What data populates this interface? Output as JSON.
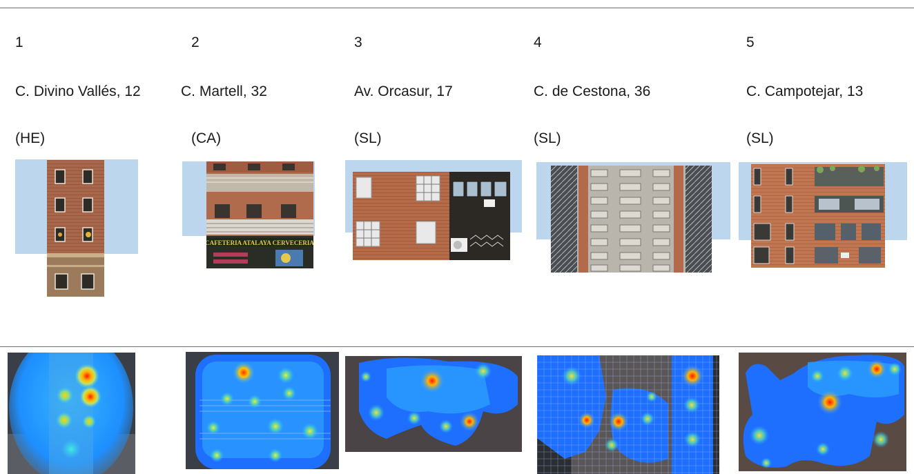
{
  "columns": [
    {
      "number": "1",
      "address": "C. Divino Vallés, 12",
      "code": "(HE)"
    },
    {
      "number": "2",
      "address": "C. Martell, 32",
      "code": "(CA)"
    },
    {
      "number": "3",
      "address": "Av. Orcasur, 17",
      "code": "(SL)"
    },
    {
      "number": "4",
      "address": "C. de Cestona, 36",
      "code": "(SL)"
    },
    {
      "number": "5",
      "address": "C. Campotejar, 13",
      "code": "(SL)"
    }
  ],
  "signs": {
    "cafeteria": "CAFETERIA ATALAYA CERVECERIA"
  },
  "colors": {
    "sky_mask": "#bcd6ed",
    "brick": "#b06a4c",
    "concrete": "#b9b5ad",
    "heat_low": "#1e5cff",
    "heat_high": "#ff1a00"
  }
}
